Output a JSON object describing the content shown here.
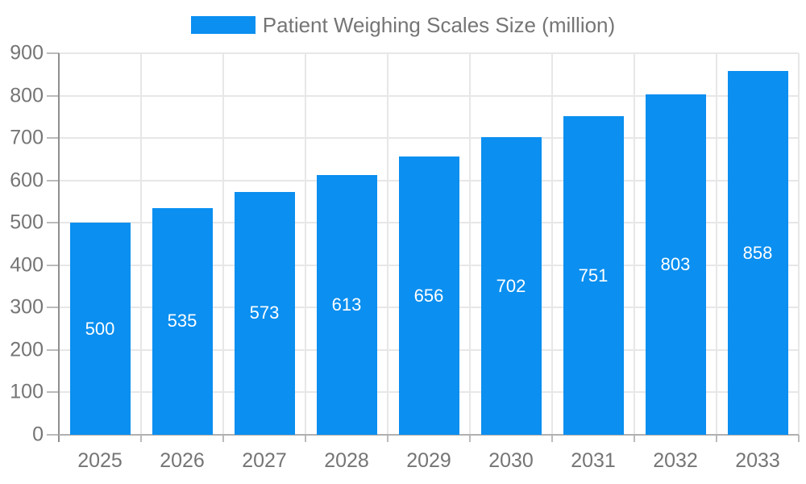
{
  "chart_data": {
    "type": "bar",
    "title": "Patient Weighing Scales Size (million)",
    "series": [
      {
        "name": "Patient Weighing Scales Size (million)",
        "values": [
          500,
          535,
          573,
          613,
          656,
          702,
          751,
          803,
          858
        ]
      }
    ],
    "categories": [
      "2025",
      "2026",
      "2027",
      "2028",
      "2029",
      "2030",
      "2031",
      "2032",
      "2033"
    ],
    "xlabel": "",
    "ylabel": "",
    "ylim": [
      0,
      900
    ],
    "ytick_step": 100,
    "yticks": [
      "0",
      "100",
      "200",
      "300",
      "400",
      "500",
      "600",
      "700",
      "800",
      "900"
    ],
    "grid": true,
    "legend_position": "top",
    "value_labels_shown": true,
    "colors": {
      "bar": "#0b8ff0",
      "value_label": "#ffffff",
      "axis_text": "#757575",
      "gridline": "#e7e7e7",
      "y_axis_line": "#8f8f8f",
      "baseline": "#b0b0b0",
      "tick": "#bbbbbb",
      "background": "#ffffff"
    }
  }
}
